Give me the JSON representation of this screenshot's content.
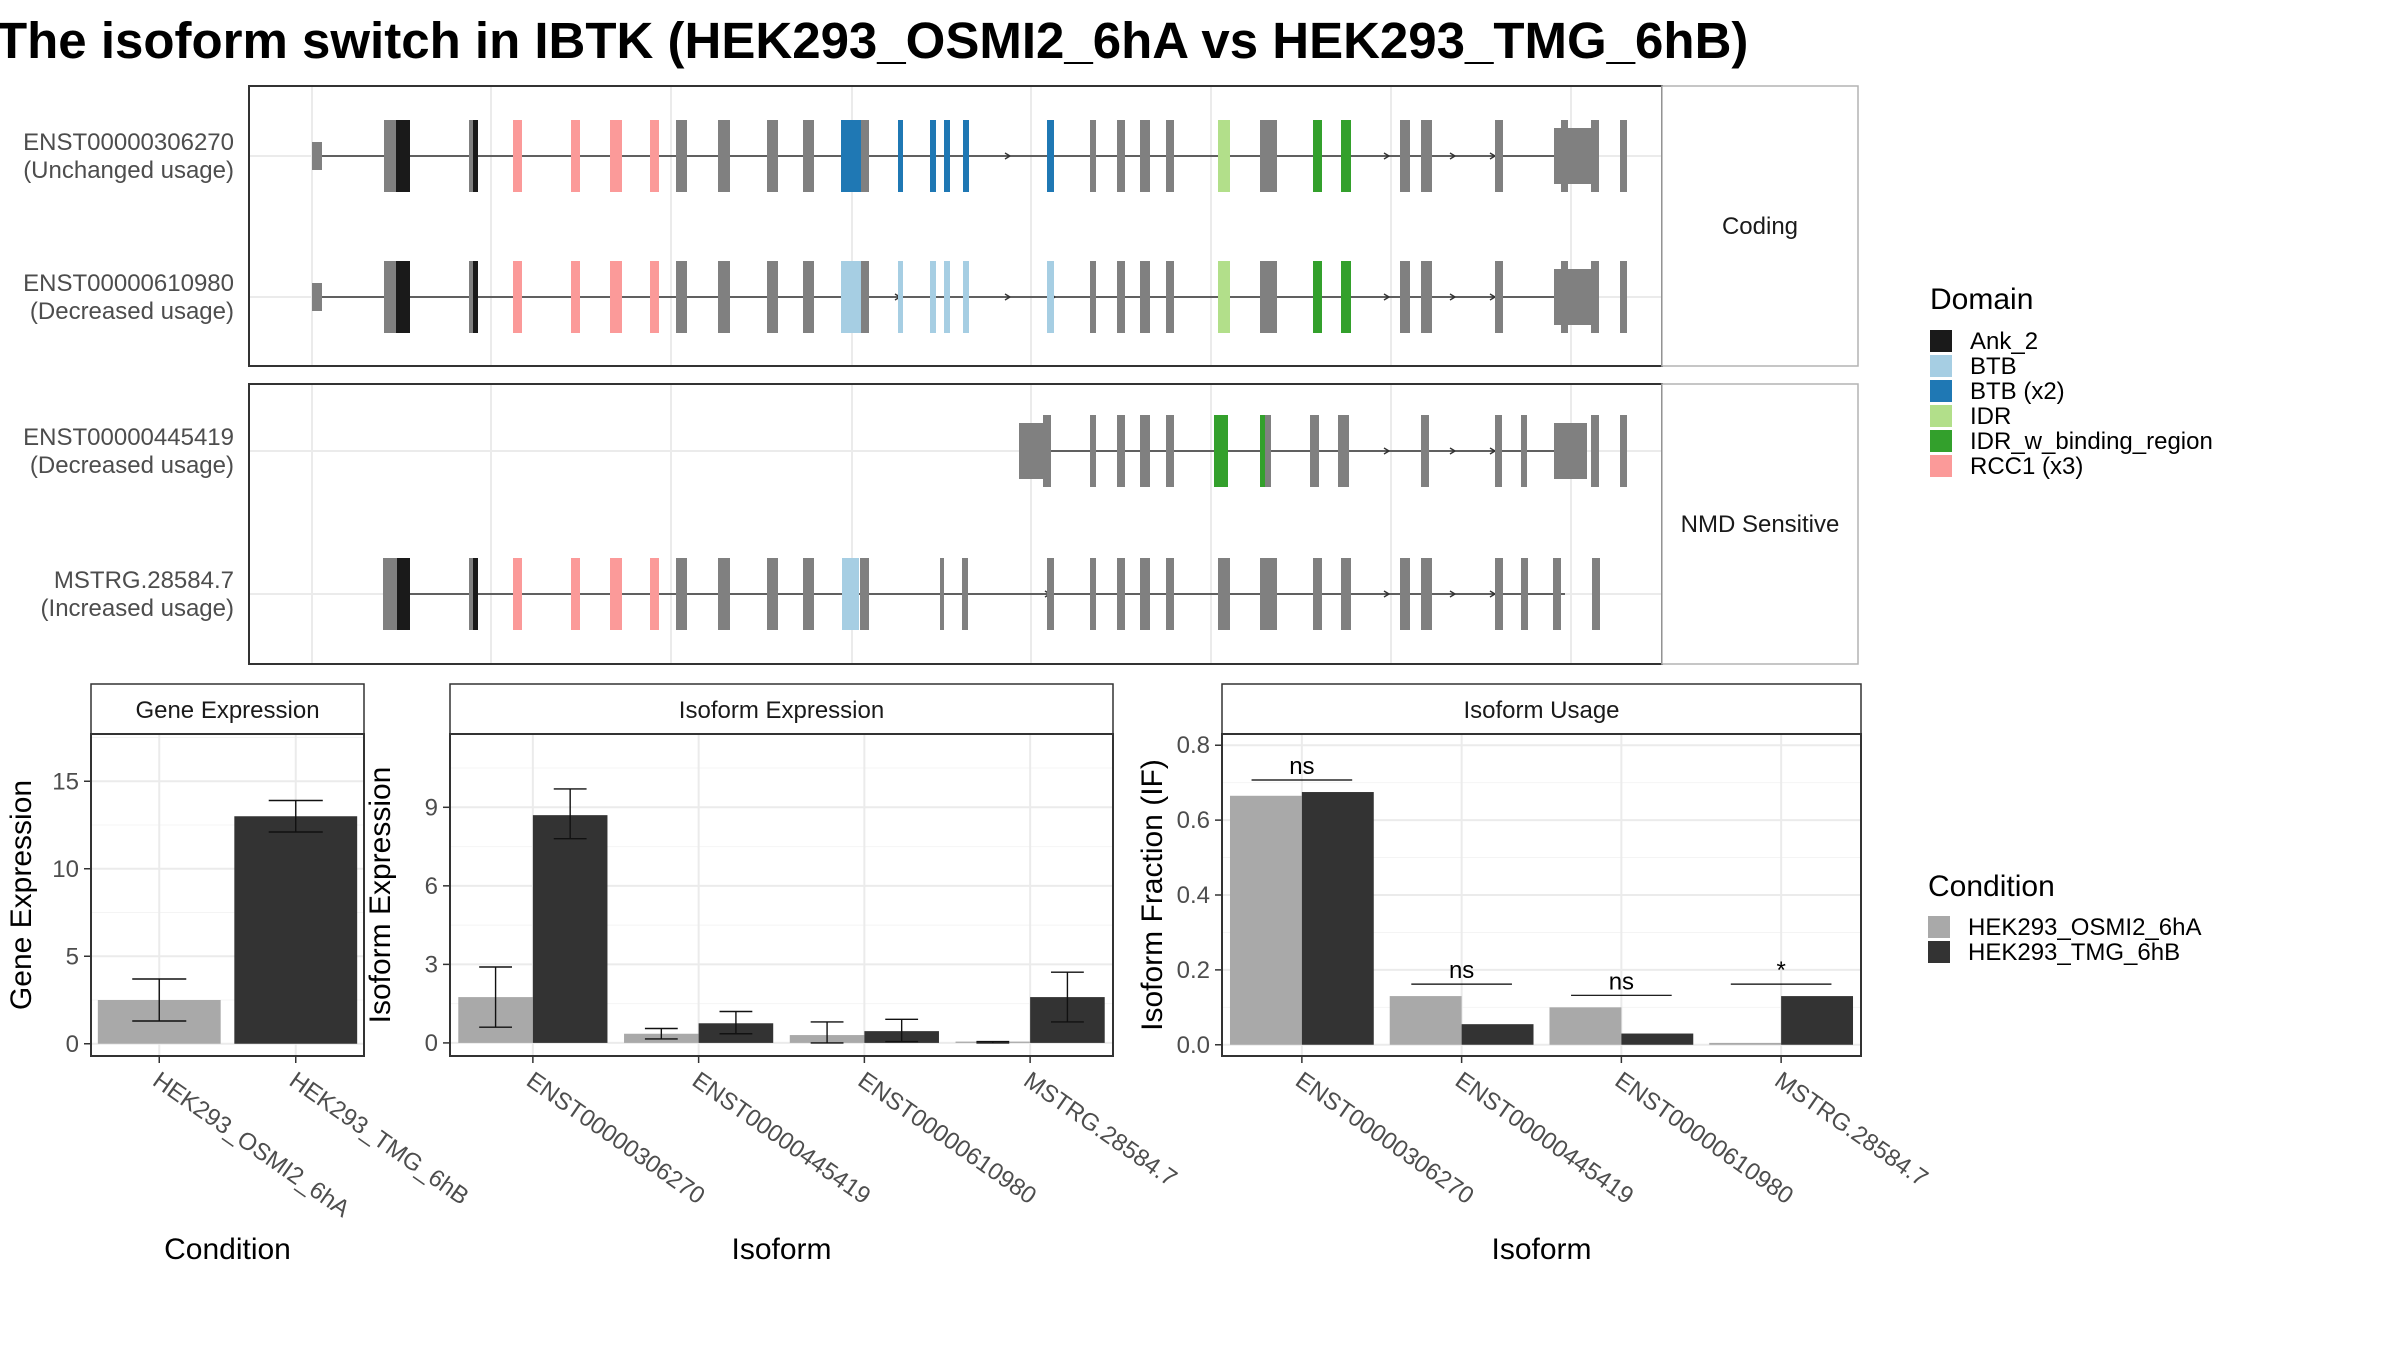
{
  "title": "The isoform switch in IBTK (HEK293_OSMI2_6hA vs HEK293_TMG_6hB)",
  "colors": {
    "Ank_2": "#1a1a1a",
    "BTB": "#a6cee3",
    "BTB (x2)": "#1f78b4",
    "IDR": "#b2df8a",
    "IDR_w_binding_region": "#33a02c",
    "RCC1 (x3)": "#fb9a99",
    "none": "#808080",
    "condA": "#a9a9a9",
    "condB": "#333333"
  },
  "structure": {
    "facets": [
      {
        "label": "Coding",
        "tracks": [
          {
            "id": "ENST00000306270",
            "usage": "(Unchanged usage)"
          },
          {
            "id": "ENST00000610980",
            "usage": "(Decreased usage)"
          }
        ]
      },
      {
        "label": "NMD Sensitive",
        "tracks": [
          {
            "id": "ENST00000445419",
            "usage": "(Decreased usage)"
          },
          {
            "id": "MSTRG.28584.7",
            "usage": "(Increased usage)"
          }
        ]
      }
    ],
    "legend": {
      "title": "Domain",
      "items": [
        "Ank_2",
        "BTB",
        "BTB (x2)",
        "IDR",
        "IDR_w_binding_region",
        "RCC1 (x3)"
      ]
    }
  },
  "conditions": {
    "title": "Condition",
    "items": [
      "HEK293_OSMI2_6hA",
      "HEK293_TMG_6hB"
    ]
  },
  "chart_data": [
    {
      "type": "bar",
      "title": "Gene Expression",
      "xlabel": "Condition",
      "ylabel": "Gene Expression",
      "categories": [
        "HEK293_OSMI2_6hA",
        "HEK293_TMG_6hB"
      ],
      "values": [
        2.5,
        13.0
      ],
      "errors": [
        [
          1.3,
          3.7
        ],
        [
          12.1,
          13.9
        ]
      ],
      "ylim": [
        -0.7,
        17.7
      ],
      "yticks": [
        0,
        5,
        10,
        15
      ]
    },
    {
      "type": "bar",
      "title": "Isoform Expression",
      "xlabel": "Isoform",
      "ylabel": "Isoform Expression",
      "categories": [
        "ENST00000306270",
        "ENST00000445419",
        "ENST00000610980",
        "MSTRG.28584.7"
      ],
      "series": [
        {
          "name": "HEK293_OSMI2_6hA",
          "values": [
            1.75,
            0.35,
            0.3,
            0.05
          ],
          "errors": [
            [
              0.6,
              2.9
            ],
            [
              0.15,
              0.55
            ],
            [
              0.0,
              0.8
            ],
            [
              0.0,
              0.05
            ]
          ]
        },
        {
          "name": "HEK293_TMG_6hB",
          "values": [
            8.7,
            0.75,
            0.45,
            1.75
          ],
          "errors": [
            [
              7.8,
              9.7
            ],
            [
              0.35,
              1.2
            ],
            [
              0.05,
              0.9
            ],
            [
              0.8,
              2.7
            ]
          ]
        }
      ],
      "ylim": [
        -0.5,
        11.8
      ],
      "yticks": [
        0,
        3,
        6,
        9
      ]
    },
    {
      "type": "bar",
      "title": "Isoform Usage",
      "xlabel": "Isoform",
      "ylabel": "Isoform Fraction (IF)",
      "categories": [
        "ENST00000306270",
        "ENST00000445419",
        "ENST00000610980",
        "MSTRG.28584.7"
      ],
      "series": [
        {
          "name": "HEK293_OSMI2_6hA",
          "values": [
            0.665,
            0.13,
            0.1,
            0.005
          ]
        },
        {
          "name": "HEK293_TMG_6hB",
          "values": [
            0.675,
            0.055,
            0.03,
            0.13
          ]
        }
      ],
      "significance": [
        "ns",
        "ns",
        "ns",
        "*"
      ],
      "ylim": [
        -0.03,
        0.83
      ],
      "yticks": [
        0.0,
        0.2,
        0.4,
        0.6,
        0.8
      ]
    }
  ]
}
